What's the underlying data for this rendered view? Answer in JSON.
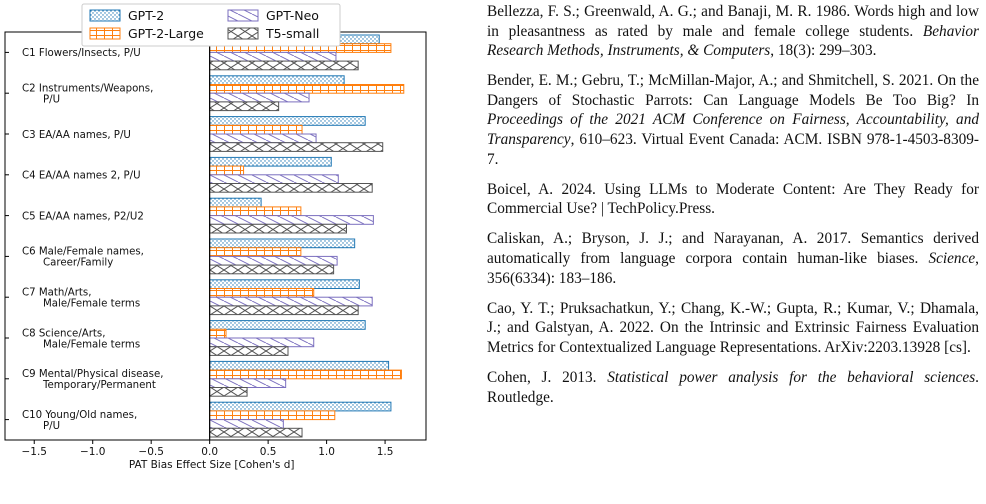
{
  "chart_data": {
    "type": "bar",
    "orientation": "horizontal",
    "xlabel": "PAT Bias Effect Size [Cohen's d]",
    "xlim": [
      -1.75,
      1.85
    ],
    "xticks": [
      -1.5,
      -1.0,
      -0.5,
      0.0,
      0.5,
      1.0,
      1.5
    ],
    "xtick_labels": [
      "−1.5",
      "−1.0",
      "−0.5",
      "0.0",
      "0.5",
      "1.0",
      "1.5"
    ],
    "grid": false,
    "legend_position": "top",
    "categories": [
      [
        "C1 Flowers/Insects, P/U"
      ],
      [
        "C2 Instruments/Weapons,",
        "P/U"
      ],
      [
        "C3 EA/AA names, P/U"
      ],
      [
        "C4 EA/AA names 2, P/U"
      ],
      [
        "C5 EA/AA names, P2/U2"
      ],
      [
        "C6 Male/Female names,",
        "Career/Family"
      ],
      [
        "C7 Math/Arts,",
        "Male/Female terms"
      ],
      [
        "C8 Science/Arts,",
        "Male/Female terms"
      ],
      [
        "C9 Mental/Physical disease,",
        "Temporary/Permanent"
      ],
      [
        "C10 Young/Old names,",
        "P/U"
      ]
    ],
    "series": [
      {
        "name": "GPT-2",
        "color": "#1f77b4",
        "pattern": "dots",
        "values": [
          1.45,
          1.15,
          1.33,
          1.04,
          0.44,
          1.24,
          1.28,
          1.33,
          1.53,
          1.55
        ]
      },
      {
        "name": "GPT-2-Large",
        "color": "#ff7f0e",
        "pattern": "grid",
        "values": [
          1.55,
          1.66,
          0.79,
          0.29,
          0.78,
          0.78,
          0.89,
          0.14,
          1.64,
          1.07
        ]
      },
      {
        "name": "GPT-Neo",
        "color": "#7b6fbf",
        "pattern": "diag-right",
        "values": [
          1.08,
          0.85,
          0.91,
          1.1,
          1.4,
          1.09,
          1.39,
          0.89,
          0.65,
          0.63
        ]
      },
      {
        "name": "T5-small",
        "color": "#555555",
        "pattern": "cross",
        "values": [
          1.27,
          0.59,
          1.48,
          1.39,
          1.17,
          1.06,
          1.27,
          0.67,
          0.32,
          0.79
        ]
      }
    ]
  },
  "references": [
    {
      "segments": [
        {
          "t": "Bellezza, F. S.; Greenwald, A. G.; and Banaji, M. R. 1986. Words high and low in pleasantness as rated by male and female college students. ",
          "i": false
        },
        {
          "t": "Behavior Research Methods, Instruments, & Computers",
          "i": true
        },
        {
          "t": ", 18(3): 299–303.",
          "i": false
        }
      ]
    },
    {
      "segments": [
        {
          "t": "Bender, E. M.; Gebru, T.; McMillan-Major, A.; and Shmitchell, S. 2021. On the Dangers of Stochastic Parrots: Can Language Models Be Too Big? In ",
          "i": false
        },
        {
          "t": "Proceedings of the 2021 ACM Conference on Fairness, Accountability, and Transparency",
          "i": true
        },
        {
          "t": ", 610–623. Virtual Event Canada: ACM. ISBN 978-1-4503-8309-7.",
          "i": false
        }
      ]
    },
    {
      "segments": [
        {
          "t": "Boicel, A. 2024. Using LLMs to Moderate Content: Are They Ready for Commercial Use? | TechPolicy.Press.",
          "i": false
        }
      ]
    },
    {
      "segments": [
        {
          "t": "Caliskan, A.; Bryson, J. J.; and Narayanan, A. 2017. Semantics derived automatically from language corpora contain human-like biases. ",
          "i": false
        },
        {
          "t": "Science",
          "i": true
        },
        {
          "t": ", 356(6334): 183–186.",
          "i": false
        }
      ]
    },
    {
      "segments": [
        {
          "t": "Cao, Y. T.; Pruksachatkun, Y.; Chang, K.-W.; Gupta, R.; Kumar, V.; Dhamala, J.; and Galstyan, A. 2022. On the Intrinsic and Extrinsic Fairness Evaluation Metrics for Contextualized Language Representations. ArXiv:2203.13928 [cs].",
          "i": false
        }
      ]
    },
    {
      "segments": [
        {
          "t": "Cohen, J. 2013. ",
          "i": false
        },
        {
          "t": "Statistical power analysis for the behavioral sciences",
          "i": true
        },
        {
          "t": ". Routledge.",
          "i": false
        }
      ]
    }
  ]
}
